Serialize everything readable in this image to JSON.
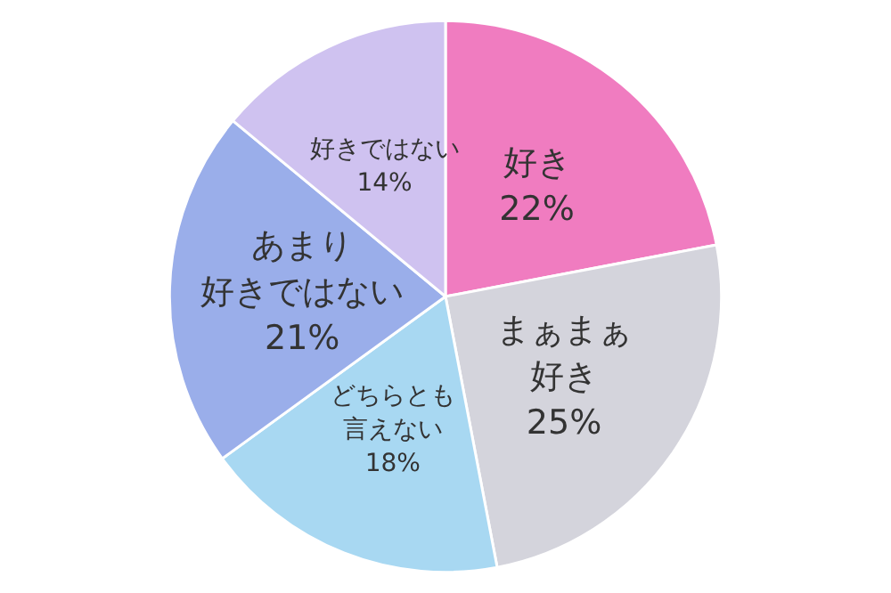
{
  "chart_data": {
    "type": "pie",
    "categories": [
      "好き",
      "まぁまぁ好き",
      "どちらとも言えない",
      "あまり好きではない",
      "好きではない"
    ],
    "values": [
      22,
      25,
      18,
      21,
      14
    ],
    "value_labels": [
      "22%",
      "25%",
      "18%",
      "21%",
      "14%"
    ],
    "colors": [
      "#f07cc0",
      "#d4d4dc",
      "#a8d8f2",
      "#9aaeea",
      "#cfc2f0"
    ],
    "legend": false
  }
}
